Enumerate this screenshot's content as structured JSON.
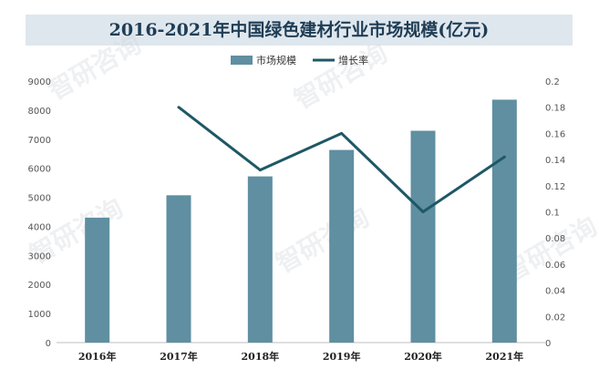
{
  "watermark": "智研咨询",
  "chart_data": {
    "type": "bar",
    "title": "2016-2021年中国绿色建材行业市场规模(亿元)",
    "categories": [
      "2016年",
      "2017年",
      "2018年",
      "2019年",
      "2020年",
      "2021年"
    ],
    "series": [
      {
        "name": "市场规模",
        "type": "bar",
        "axis": "left",
        "color": "#5f8fa1",
        "values": [
          4300,
          5070,
          5720,
          6630,
          7290,
          8360
        ]
      },
      {
        "name": "增长率",
        "type": "line",
        "axis": "right",
        "color": "#1f5866",
        "values": [
          null,
          0.18,
          0.132,
          0.16,
          0.1,
          0.142
        ]
      }
    ],
    "y_left": {
      "ylim": [
        0,
        9000
      ],
      "ticks": [
        "0",
        "1000",
        "2000",
        "3000",
        "4000",
        "5000",
        "6000",
        "7000",
        "8000",
        "9000"
      ]
    },
    "y_right": {
      "ylim": [
        0,
        0.2
      ],
      "ticks": [
        "0",
        "0.02",
        "0.04",
        "0.06",
        "0.08",
        "0.1",
        "0.12",
        "0.14",
        "0.16",
        "0.18",
        "0.2"
      ]
    },
    "legend_position": "top-center",
    "grid": false
  }
}
